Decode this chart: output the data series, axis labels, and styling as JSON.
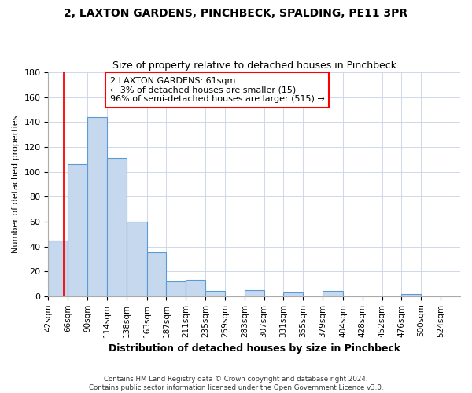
{
  "title": "2, LAXTON GARDENS, PINCHBECK, SPALDING, PE11 3PR",
  "subtitle": "Size of property relative to detached houses in Pinchbeck",
  "xlabel": "Distribution of detached houses by size in Pinchbeck",
  "ylabel": "Number of detached properties",
  "bar_color": "#c5d8ed",
  "bar_edge_color": "#5b9bd5",
  "bin_labels": [
    "42sqm",
    "66sqm",
    "90sqm",
    "114sqm",
    "138sqm",
    "163sqm",
    "187sqm",
    "211sqm",
    "235sqm",
    "259sqm",
    "283sqm",
    "307sqm",
    "331sqm",
    "355sqm",
    "379sqm",
    "404sqm",
    "428sqm",
    "452sqm",
    "476sqm",
    "500sqm",
    "524sqm"
  ],
  "bar_values": [
    45,
    106,
    144,
    111,
    60,
    35,
    12,
    13,
    4,
    0,
    5,
    0,
    3,
    0,
    4,
    0,
    0,
    0,
    2,
    0,
    0
  ],
  "ylim": [
    0,
    180
  ],
  "yticks": [
    0,
    20,
    40,
    60,
    80,
    100,
    120,
    140,
    160,
    180
  ],
  "annotation_title": "2 LAXTON GARDENS: 61sqm",
  "annotation_line1": "← 3% of detached houses are smaller (15)",
  "annotation_line2": "96% of semi-detached houses are larger (515) →",
  "red_line_x": 61,
  "bin_edges": [
    42,
    66,
    90,
    114,
    138,
    163,
    187,
    211,
    235,
    259,
    283,
    307,
    331,
    355,
    379,
    404,
    428,
    452,
    476,
    500,
    524,
    548
  ],
  "footer_line1": "Contains HM Land Registry data © Crown copyright and database right 2024.",
  "footer_line2": "Contains public sector information licensed under the Open Government Licence v3.0.",
  "background_color": "#ffffff",
  "grid_color": "#d0d8e8"
}
